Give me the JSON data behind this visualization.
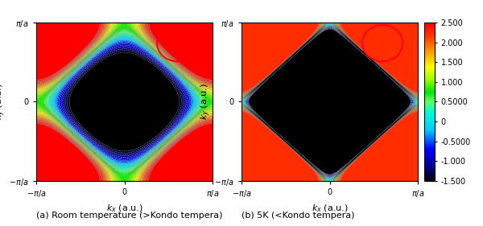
{
  "subplot_a_label": "(a) Room temperature (>Kondo tempera)",
  "subplot_b_label": "(b) 5K (<Kondo tempera)",
  "colorbar_ticks": [
    2.5,
    2.0,
    1.5,
    1.0,
    0.5,
    0.0,
    -0.5,
    -1.0,
    -1.5
  ],
  "colorbar_labels": [
    "2.500",
    "2.000",
    "1.500",
    "1.000",
    "0.5000",
    "0",
    "-0.5000",
    "-1.000",
    "-1.500"
  ],
  "vmin": -1.5,
  "vmax": 2.5,
  "figsize": [
    6.0,
    2.81
  ],
  "dpi": 100,
  "n_levels": 35,
  "n_contour_lines": 35
}
